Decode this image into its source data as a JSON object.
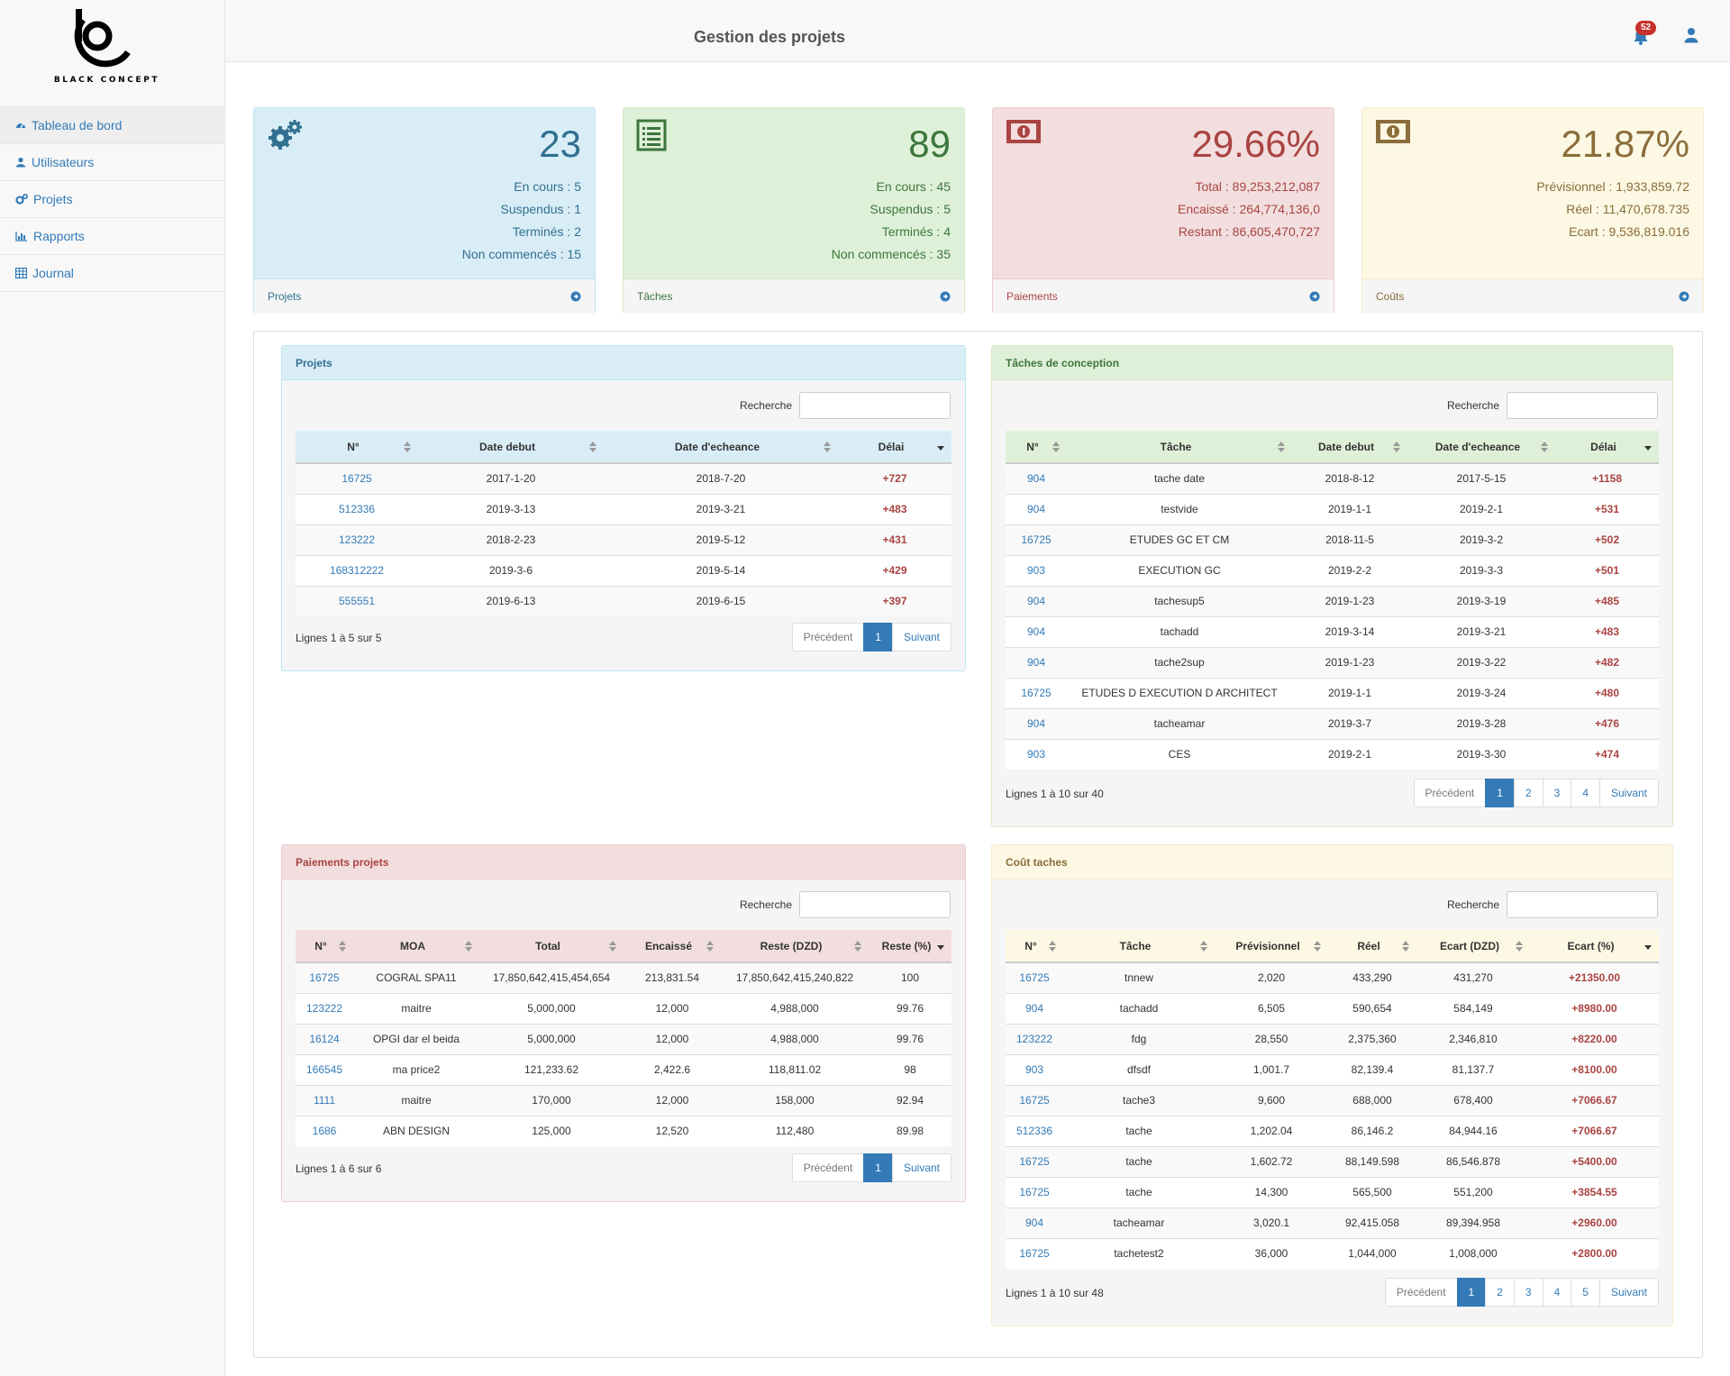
{
  "brand": {
    "name": "BLACK CONCEPT"
  },
  "header": {
    "title": "Gestion des projets",
    "notification_count": "52"
  },
  "sidebar": {
    "items": [
      {
        "label": "Tableau de bord",
        "icon": "dashboard-icon"
      },
      {
        "label": "Utilisateurs",
        "icon": "user-icon"
      },
      {
        "label": "Projets",
        "icon": "gears-icon"
      },
      {
        "label": "Rapports",
        "icon": "bar-chart-icon"
      },
      {
        "label": "Journal",
        "icon": "table-icon"
      }
    ]
  },
  "stats": [
    {
      "value": "23",
      "lines": [
        "En cours : 5",
        "Suspendus : 1",
        "Terminés : 2",
        "Non commencés : 15"
      ],
      "footer": "Projets",
      "icon": "gears-icon",
      "color": "#31708f"
    },
    {
      "value": "89",
      "lines": [
        "En cours : 45",
        "Suspendus : 5",
        "Terminés : 4",
        "Non commencés : 35"
      ],
      "footer": "Tâches",
      "icon": "list-icon",
      "color": "#3c763d"
    },
    {
      "value": "29.66%",
      "lines": [
        "Total : 89,253,212,087",
        "Encaissé : 264,774,136,0",
        "Restant : 86,605,470,727"
      ],
      "footer": "Paiements",
      "icon": "money-icon",
      "color": "#a94442"
    },
    {
      "value": "21.87%",
      "lines": [
        "Prévisionnel : 1,933,859.72",
        "Réel : 11,470,678.735",
        "Ecart : 9,536,819.016"
      ],
      "footer": "Coûts",
      "icon": "money-icon",
      "color": "#8a6d3b"
    }
  ],
  "search_label": "Recherche",
  "pager": {
    "prev": "Précédent",
    "next": "Suivant"
  },
  "projets": {
    "title": "Projets",
    "columns": [
      "N°",
      "Date debut",
      "Date d'echeance",
      "Délai"
    ],
    "rows": [
      [
        "16725",
        "2017-1-20",
        "2018-7-20",
        "+727"
      ],
      [
        "512336",
        "2019-3-13",
        "2019-3-21",
        "+483"
      ],
      [
        "123222",
        "2018-2-23",
        "2019-5-12",
        "+431"
      ],
      [
        "168312222",
        "2019-3-6",
        "2019-5-14",
        "+429"
      ],
      [
        "555551",
        "2019-6-13",
        "2019-6-15",
        "+397"
      ]
    ],
    "info": "Lignes 1 à 5 sur 5",
    "pages": [
      "1"
    ]
  },
  "taches": {
    "title": "Tâches de conception",
    "columns": [
      "N°",
      "Tâche",
      "Date debut",
      "Date d'echeance",
      "Délai"
    ],
    "rows": [
      [
        "904",
        "tache date",
        "2018-8-12",
        "2017-5-15",
        "+1158"
      ],
      [
        "904",
        "testvide",
        "2019-1-1",
        "2019-2-1",
        "+531"
      ],
      [
        "16725",
        "ETUDES GC ET CM",
        "2018-11-5",
        "2019-3-2",
        "+502"
      ],
      [
        "903",
        "EXECUTION GC",
        "2019-2-2",
        "2019-3-3",
        "+501"
      ],
      [
        "904",
        "tachesup5",
        "2019-1-23",
        "2019-3-19",
        "+485"
      ],
      [
        "904",
        "tachadd",
        "2019-3-14",
        "2019-3-21",
        "+483"
      ],
      [
        "904",
        "tache2sup",
        "2019-1-23",
        "2019-3-22",
        "+482"
      ],
      [
        "16725",
        "ETUDES D EXECUTION D ARCHITECT",
        "2019-1-1",
        "2019-3-24",
        "+480"
      ],
      [
        "904",
        "tacheamar",
        "2019-3-7",
        "2019-3-28",
        "+476"
      ],
      [
        "903",
        "CES",
        "2019-2-1",
        "2019-3-30",
        "+474"
      ]
    ],
    "info": "Lignes 1 à 10 sur 40",
    "pages": [
      "1",
      "2",
      "3",
      "4"
    ]
  },
  "paiements": {
    "title": "Paiements projets",
    "columns": [
      "N°",
      "MOA",
      "Total",
      "Encaissé",
      "Reste (DZD)",
      "Reste (%)"
    ],
    "rows": [
      [
        "16725",
        "COGRAL SPA11",
        "17,850,642,415,454,654",
        "213,831.54",
        "17,850,642,415,240,822",
        "100"
      ],
      [
        "123222",
        "maitre",
        "5,000,000",
        "12,000",
        "4,988,000",
        "99.76"
      ],
      [
        "16124",
        "OPGI dar el beida",
        "5,000,000",
        "12,000",
        "4,988,000",
        "99.76"
      ],
      [
        "166545",
        "ma price2",
        "121,233.62",
        "2,422.6",
        "118,811.02",
        "98"
      ],
      [
        "1111",
        "maitre",
        "170,000",
        "12,000",
        "158,000",
        "92.94"
      ],
      [
        "1686",
        "ABN DESIGN",
        "125,000",
        "12,520",
        "112,480",
        "89.98"
      ]
    ],
    "info": "Lignes 1 à 6 sur 6",
    "pages": [
      "1"
    ]
  },
  "couts": {
    "title": "Coût taches",
    "columns": [
      "N°",
      "Tâche",
      "Prévisionnel",
      "Réel",
      "Ecart (DZD)",
      "Ecart (%)"
    ],
    "rows": [
      [
        "16725",
        "tnnew",
        "2,020",
        "433,290",
        "431,270",
        "+21350.00"
      ],
      [
        "904",
        "tachadd",
        "6,505",
        "590,654",
        "584,149",
        "+8980.00"
      ],
      [
        "123222",
        "fdg",
        "28,550",
        "2,375,360",
        "2,346,810",
        "+8220.00"
      ],
      [
        "903",
        "dfsdf",
        "1,001.7",
        "82,139.4",
        "81,137.7",
        "+8100.00"
      ],
      [
        "16725",
        "tache3",
        "9,600",
        "688,000",
        "678,400",
        "+7066.67"
      ],
      [
        "512336",
        "tache",
        "1,202.04",
        "86,146.2",
        "84,944.16",
        "+7066.67"
      ],
      [
        "16725",
        "tache",
        "1,602.72",
        "88,149.598",
        "86,546.878",
        "+5400.00"
      ],
      [
        "16725",
        "tache",
        "14,300",
        "565,500",
        "551,200",
        "+3854.55"
      ],
      [
        "904",
        "tacheamar",
        "3,020.1",
        "92,415.058",
        "89,394.958",
        "+2960.00"
      ],
      [
        "16725",
        "tachetest2",
        "36,000",
        "1,044,000",
        "1,008,000",
        "+2800.00"
      ]
    ],
    "info": "Lignes 1 à 10 sur 48",
    "pages": [
      "1",
      "2",
      "3",
      "4",
      "5"
    ]
  }
}
